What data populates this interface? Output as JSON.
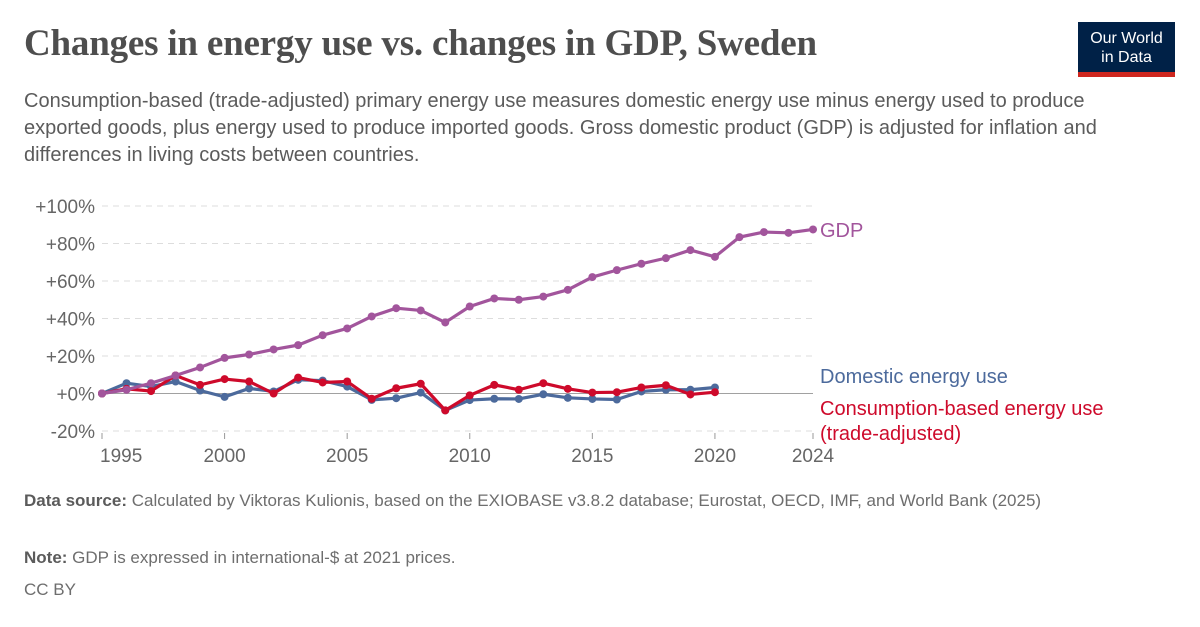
{
  "header": {
    "title": "Changes in energy use vs. changes in GDP, Sweden",
    "logo_text": "Our World in Data",
    "subtitle": "Consumption-based (trade-adjusted) primary energy use measures domestic energy use minus energy used to produce exported goods, plus energy used to produce imported goods. Gross domestic product (GDP) is adjusted for inflation and differences in living costs between countries."
  },
  "chart_data": {
    "type": "line",
    "title": "Changes in energy use vs. changes in GDP, Sweden",
    "ylim": [
      -20,
      100
    ],
    "yticks": [
      -20,
      0,
      20,
      40,
      60,
      80,
      100
    ],
    "ytick_labels": [
      "-20%",
      "+0%",
      "+20%",
      "+40%",
      "+60%",
      "+80%",
      "+100%"
    ],
    "xlim": [
      1995,
      2024
    ],
    "xticks": [
      1995,
      2000,
      2005,
      2010,
      2015,
      2020,
      2024
    ],
    "xtick_labels": [
      "1995",
      "2000",
      "2005",
      "2010",
      "2015",
      "2020",
      "2024"
    ],
    "grid": "horizontal dashed",
    "legend": "right, labels at line ends",
    "series": [
      {
        "name": "GDP",
        "color": "#a2559c",
        "x": [
          1995,
          1996,
          1997,
          1998,
          1999,
          2000,
          2001,
          2002,
          2003,
          2004,
          2005,
          2006,
          2007,
          2008,
          2009,
          2010,
          2011,
          2012,
          2013,
          2014,
          2015,
          2016,
          2017,
          2018,
          2019,
          2020,
          2021,
          2022,
          2023,
          2024
        ],
        "values": [
          0,
          2,
          5.5,
          9.6,
          13.9,
          19,
          20.8,
          23.5,
          25.8,
          31.1,
          34.7,
          41.1,
          45.5,
          44.3,
          37.9,
          46.4,
          50.7,
          50,
          51.7,
          55.3,
          62.1,
          65.8,
          69.2,
          72.2,
          76.5,
          72.9,
          83.4,
          86.1,
          85.7,
          87.5
        ]
      },
      {
        "name": "Domestic energy use",
        "color": "#4c6a9c",
        "x": [
          1995,
          1996,
          1997,
          1998,
          1999,
          2000,
          2001,
          2002,
          2003,
          2004,
          2005,
          2006,
          2007,
          2008,
          2009,
          2010,
          2011,
          2012,
          2013,
          2014,
          2015,
          2016,
          2017,
          2018,
          2019,
          2020
        ],
        "values": [
          0,
          5.5,
          3.7,
          6.4,
          1.6,
          -1.8,
          2.7,
          1.1,
          7.3,
          6.9,
          3.7,
          -3.4,
          -2.5,
          0.5,
          -9,
          -3.5,
          -2.8,
          -2.9,
          -0.4,
          -2.3,
          -2.9,
          -3.2,
          1.1,
          2,
          2,
          3.2
        ]
      },
      {
        "name": "Consumption-based energy use (trade-adjusted)",
        "color": "#ce0a2b",
        "x": [
          1995,
          1996,
          1997,
          1998,
          1999,
          2000,
          2001,
          2002,
          2003,
          2004,
          2005,
          2006,
          2007,
          2008,
          2009,
          2010,
          2011,
          2012,
          2013,
          2014,
          2015,
          2016,
          2017,
          2018,
          2019,
          2020
        ],
        "values": [
          0,
          2.5,
          1.3,
          9.6,
          4.6,
          7.7,
          6.4,
          0,
          8.5,
          5.9,
          6.4,
          -2.8,
          2.8,
          5.2,
          -9,
          -1,
          4.6,
          2,
          5.5,
          2.5,
          0.5,
          0.7,
          3.2,
          4.4,
          -0.5,
          0.7
        ]
      }
    ],
    "legend_labels": {
      "gdp": "GDP",
      "domestic": "Domestic energy use",
      "consumption_1": "Consumption-based energy use",
      "consumption_2": "(trade-adjusted)"
    }
  },
  "footer": {
    "source_label": "Data source:",
    "source_text": " Calculated by Viktoras Kulionis, based on the EXIOBASE v3.8.2 database; Eurostat, OECD, IMF, and World Bank (2025)",
    "note_label": "Note:",
    "note_text": " GDP is expressed in international-$ at 2021 prices.",
    "license": "CC BY"
  }
}
